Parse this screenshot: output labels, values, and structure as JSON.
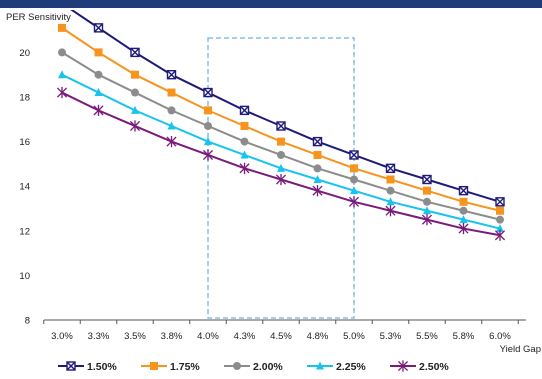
{
  "chart_data": {
    "type": "line",
    "ylabel": "PER Sensitivity",
    "xlabel": "Yield Gap",
    "x": [
      "3.0%",
      "3.3%",
      "3.5%",
      "3.8%",
      "4.0%",
      "4.3%",
      "4.5%",
      "4.8%",
      "5.0%",
      "5.3%",
      "5.5%",
      "5.8%",
      "6.0%"
    ],
    "ylim": [
      8,
      21.5
    ],
    "yticks": [
      8,
      10,
      12,
      14,
      16,
      18,
      20
    ],
    "grid": false,
    "highlight_range": [
      "4.0%",
      "5.0%"
    ],
    "legend_position": "bottom",
    "series": [
      {
        "name": "1.50%",
        "color": "#1f1a7a",
        "marker": "box-x",
        "values": [
          22.2,
          21.1,
          20.0,
          19.0,
          18.2,
          17.4,
          16.7,
          16.0,
          15.4,
          14.8,
          14.3,
          13.8,
          13.3
        ]
      },
      {
        "name": "1.75%",
        "color": "#f7941d",
        "marker": "square",
        "values": [
          21.1,
          20.0,
          19.0,
          18.2,
          17.4,
          16.7,
          16.0,
          15.4,
          14.8,
          14.3,
          13.8,
          13.3,
          12.9
        ]
      },
      {
        "name": "2.00%",
        "color": "#8c8c8c",
        "marker": "circle",
        "values": [
          20.0,
          19.0,
          18.2,
          17.4,
          16.7,
          16.0,
          15.4,
          14.8,
          14.3,
          13.8,
          13.3,
          12.9,
          12.5
        ]
      },
      {
        "name": "2.25%",
        "color": "#19c3f0",
        "marker": "triangle",
        "values": [
          19.0,
          18.2,
          17.4,
          16.7,
          16.0,
          15.4,
          14.8,
          14.3,
          13.8,
          13.3,
          12.9,
          12.5,
          12.1
        ]
      },
      {
        "name": "2.50%",
        "color": "#7a1a7a",
        "marker": "star",
        "values": [
          18.2,
          17.4,
          16.7,
          16.0,
          15.4,
          14.8,
          14.3,
          13.8,
          13.3,
          12.9,
          12.5,
          12.1,
          11.8
        ]
      }
    ]
  }
}
